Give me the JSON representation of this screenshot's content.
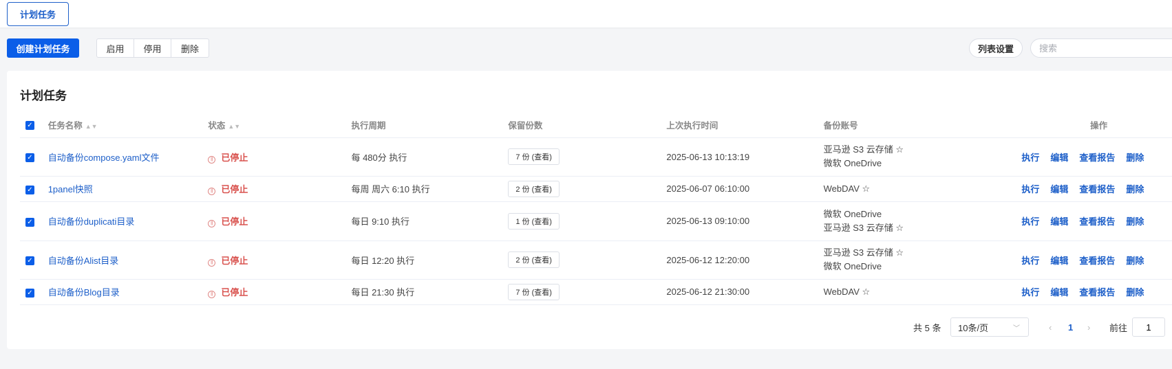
{
  "tab": "计划任务",
  "toolbar": {
    "create": "创建计划任务",
    "enable": "启用",
    "disable": "停用",
    "delete": "删除",
    "list_settings": "列表设置",
    "search_placeholder": "搜索"
  },
  "card_title": "计划任务",
  "columns": [
    "任务名称",
    "状态",
    "执行周期",
    "保留份数",
    "上次执行时间",
    "备份账号",
    "操作"
  ],
  "rows": [
    {
      "name": "自动备份compose.yaml文件",
      "status": "已停止",
      "period": "每 480分 执行",
      "keep": "7 份 (查看)",
      "last": "2025-06-13 10:13:19",
      "accounts": [
        "亚马逊 S3 云存储 ☆",
        "微软 OneDrive"
      ]
    },
    {
      "name": "1panel快照",
      "status": "已停止",
      "period": "每周 周六 6:10 执行",
      "keep": "2 份 (查看)",
      "last": "2025-06-07 06:10:00",
      "accounts": [
        "WebDAV ☆"
      ]
    },
    {
      "name": "自动备份duplicati目录",
      "status": "已停止",
      "period": "每日 9:10 执行",
      "keep": "1 份 (查看)",
      "last": "2025-06-13 09:10:00",
      "accounts": [
        "微软 OneDrive",
        "亚马逊 S3 云存储 ☆"
      ]
    },
    {
      "name": "自动备份Alist目录",
      "status": "已停止",
      "period": "每日 12:20 执行",
      "keep": "2 份 (查看)",
      "last": "2025-06-12 12:20:00",
      "accounts": [
        "亚马逊 S3 云存储 ☆",
        "微软 OneDrive"
      ]
    },
    {
      "name": "自动备份Blog目录",
      "status": "已停止",
      "period": "每日 21:30 执行",
      "keep": "7 份 (查看)",
      "last": "2025-06-12 21:30:00",
      "accounts": [
        "WebDAV ☆"
      ]
    }
  ],
  "ops": [
    "执行",
    "编辑",
    "查看报告",
    "删除"
  ],
  "pagination": {
    "total": "共 5 条",
    "page_size": "10条/页",
    "current": "1",
    "goto_label": "前往",
    "goto_value": "1"
  },
  "colors": {
    "primary": "#0b5ee8",
    "link": "#1d5fc9",
    "stopped": "#d9534f"
  }
}
